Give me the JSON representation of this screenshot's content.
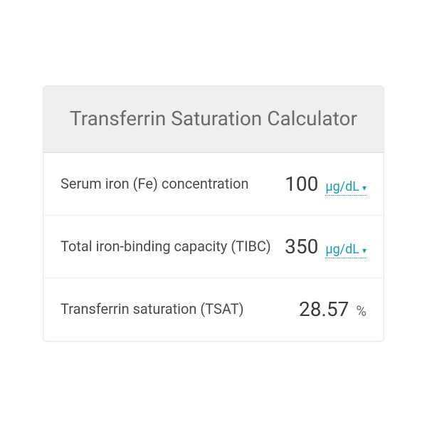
{
  "header": {
    "title": "Transferrin Saturation Calculator"
  },
  "rows": [
    {
      "label": "Serum iron (Fe) concentration",
      "value": "100",
      "unit": "µg/dL",
      "has_dropdown": true
    },
    {
      "label": "Total iron-binding capacity (TIBC)",
      "value": "350",
      "unit": "µg/dL",
      "has_dropdown": true
    },
    {
      "label": "Transferrin saturation (TSAT)",
      "value": "28.57",
      "unit": "%",
      "has_dropdown": false
    }
  ],
  "colors": {
    "header_bg": "#efefef",
    "header_text": "#6b6b6b",
    "border": "#e8e8e8",
    "row_border": "#ececec",
    "label_text": "#4a4a4a",
    "value_text": "#3a3a3a",
    "unit_link": "#1a9cb7",
    "unit_static": "#6b6b6b",
    "background": "#ffffff"
  },
  "typography": {
    "title_fontsize": 28,
    "label_fontsize": 20,
    "value_fontsize": 28,
    "unit_fontsize": 18
  }
}
